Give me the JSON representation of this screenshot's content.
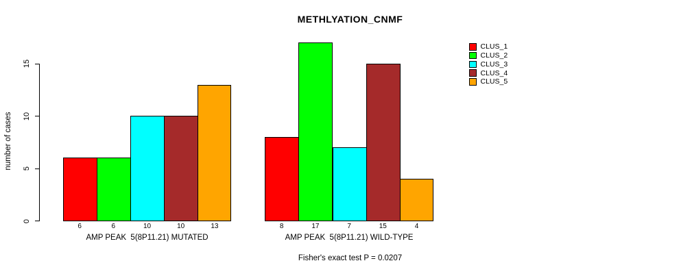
{
  "title": "METHLYATION_CNMF",
  "footnote": "Fisher's exact test P = 0.0207",
  "colors": {
    "background": "#FFFFFF",
    "axis": "#000000",
    "bar_border": "#000000"
  },
  "chart_data": {
    "type": "bar",
    "title": "METHLYATION_CNMF",
    "xlabel": "Fisher's exact test P = 0.0207",
    "ylabel": "number of cases",
    "yticks": [
      0,
      5,
      10,
      15
    ],
    "ylim": [
      0,
      17
    ],
    "grid": false,
    "legend_position": "top-right",
    "categories": [
      "AMP PEAK  5(8P11.21) MUTATED",
      "AMP PEAK  5(8P11.21) WILD-TYPE"
    ],
    "series": [
      {
        "name": "CLUS_1",
        "color": "#FF0000",
        "values": [
          6,
          8
        ]
      },
      {
        "name": "CLUS_2",
        "color": "#00FF00",
        "values": [
          6,
          17
        ]
      },
      {
        "name": "CLUS_3",
        "color": "#00FFFF",
        "values": [
          10,
          7
        ]
      },
      {
        "name": "CLUS_4",
        "color": "#A52A2A",
        "values": [
          10,
          15
        ]
      },
      {
        "name": "CLUS_5",
        "color": "#FFA500",
        "values": [
          13,
          4
        ]
      }
    ],
    "bar_value_labels": {
      "group_0": [
        6,
        6,
        10,
        10,
        13
      ],
      "group_1": [
        8,
        17,
        7,
        15,
        4
      ]
    }
  }
}
